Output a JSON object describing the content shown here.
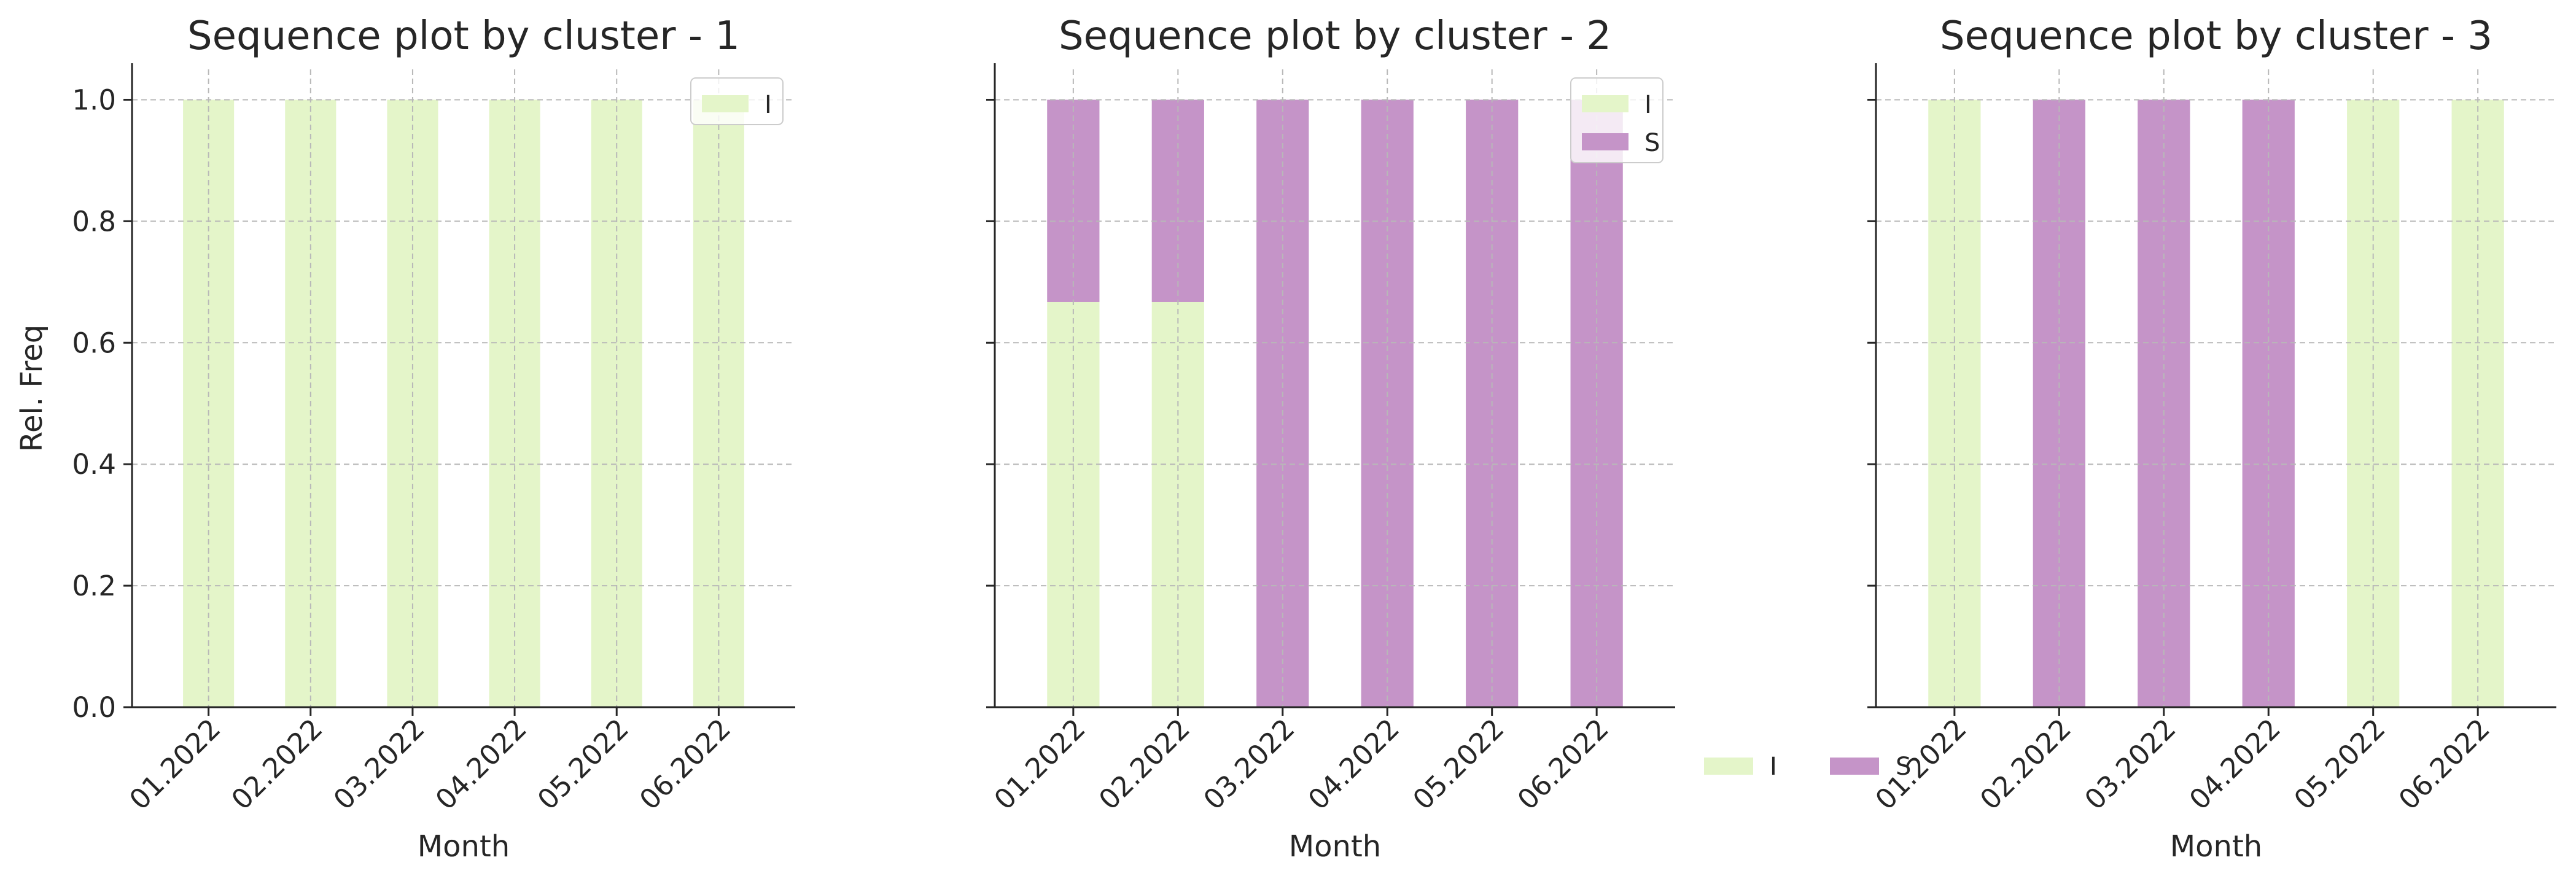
{
  "colors": {
    "I": "#e4f5c9",
    "S": "#c594c8"
  },
  "figure_legend": {
    "entries": [
      {
        "label": "I",
        "color": "#e4f5c9"
      },
      {
        "label": "S",
        "color": "#c594c8"
      }
    ],
    "placement": "bottom-center"
  },
  "chart_data": [
    {
      "type": "bar",
      "stacked": true,
      "title": "Sequence plot by cluster - 1",
      "xlabel": "Month",
      "ylabel": "Rel. Freq",
      "categories": [
        "01.2022",
        "02.2022",
        "03.2022",
        "04.2022",
        "05.2022",
        "06.2022"
      ],
      "series": [
        {
          "name": "I",
          "color": "#e4f5c9",
          "values": [
            1,
            1,
            1,
            1,
            1,
            1
          ]
        }
      ],
      "ylim": [
        0,
        1.05
      ],
      "yticks": [
        "0.0",
        "0.2",
        "0.4",
        "0.6",
        "0.8",
        "1.0"
      ],
      "grid": true,
      "legend": "top-right"
    },
    {
      "type": "bar",
      "stacked": true,
      "title": "Sequence plot by cluster - 2",
      "xlabel": "Month",
      "ylabel": "",
      "categories": [
        "01.2022",
        "02.2022",
        "03.2022",
        "04.2022",
        "05.2022",
        "06.2022"
      ],
      "series": [
        {
          "name": "I",
          "color": "#e4f5c9",
          "values": [
            0.667,
            0.667,
            0,
            0,
            0,
            0
          ]
        },
        {
          "name": "S",
          "color": "#c594c8",
          "values": [
            0.333,
            0.333,
            1,
            1,
            1,
            1
          ]
        }
      ],
      "ylim": [
        0,
        1.05
      ],
      "yticks": [
        "0.0",
        "0.2",
        "0.4",
        "0.6",
        "0.8",
        "1.0"
      ],
      "grid": true,
      "legend": "top-right"
    },
    {
      "type": "bar",
      "stacked": true,
      "title": "Sequence plot by cluster - 3",
      "xlabel": "Month",
      "ylabel": "",
      "categories": [
        "01.2022",
        "02.2022",
        "03.2022",
        "04.2022",
        "05.2022",
        "06.2022"
      ],
      "series": [
        {
          "name": "I",
          "color": "#e4f5c9",
          "values": [
            1,
            0,
            0,
            0,
            1,
            1
          ]
        },
        {
          "name": "S",
          "color": "#c594c8",
          "values": [
            0,
            1,
            1,
            1,
            0,
            0
          ]
        }
      ],
      "ylim": [
        0,
        1.05
      ],
      "yticks": [
        "0.0",
        "0.2",
        "0.4",
        "0.6",
        "0.8",
        "1.0"
      ],
      "grid": true,
      "legend": "none"
    }
  ]
}
